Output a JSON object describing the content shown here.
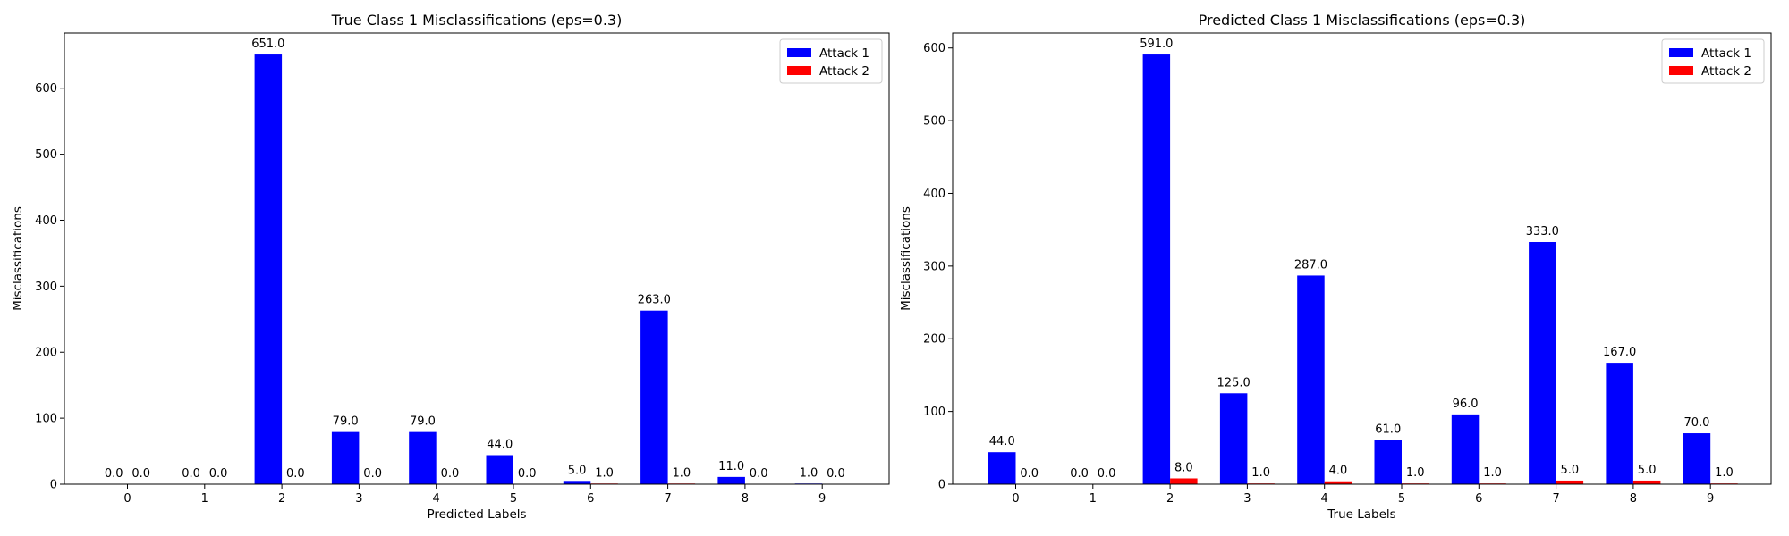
{
  "colors": {
    "attack1": "#0000ff",
    "attack2": "#ff0000"
  },
  "chart_data": [
    {
      "type": "bar",
      "title": "True Class 1 Misclassifications (eps=0.3)",
      "xlabel": "Predicted Labels",
      "ylabel": "Misclassifications",
      "categories": [
        "0",
        "1",
        "2",
        "3",
        "4",
        "5",
        "6",
        "7",
        "8",
        "9"
      ],
      "ylim": [
        0,
        683.55
      ],
      "yticks": [
        0,
        100,
        200,
        300,
        400,
        500,
        600
      ],
      "legend_position": "top-right",
      "series": [
        {
          "name": "Attack 1",
          "color": "#0000ff",
          "values": [
            0,
            0,
            651,
            79,
            79,
            44,
            5,
            263,
            11,
            1
          ],
          "labels": [
            "0.0",
            "0.0",
            "651.0",
            "79.0",
            "79.0",
            "44.0",
            "5.0",
            "263.0",
            "11.0",
            "1.0"
          ]
        },
        {
          "name": "Attack 2",
          "color": "#ff0000",
          "values": [
            0,
            0,
            0,
            0,
            0,
            0,
            1,
            1,
            0,
            0
          ],
          "labels": [
            "0.0",
            "0.0",
            "0.0",
            "0.0",
            "0.0",
            "0.0",
            "1.0",
            "1.0",
            "0.0",
            "0.0"
          ]
        }
      ]
    },
    {
      "type": "bar",
      "title": "Predicted Class 1 Misclassifications (eps=0.3)",
      "xlabel": "True Labels",
      "ylabel": "Misclassifications",
      "categories": [
        "0",
        "1",
        "2",
        "3",
        "4",
        "5",
        "6",
        "7",
        "8",
        "9"
      ],
      "ylim": [
        0,
        620.55
      ],
      "yticks": [
        0,
        100,
        200,
        300,
        400,
        500,
        600
      ],
      "legend_position": "top-right",
      "series": [
        {
          "name": "Attack 1",
          "color": "#0000ff",
          "values": [
            44,
            0,
            591,
            125,
            287,
            61,
            96,
            333,
            167,
            70
          ],
          "labels": [
            "44.0",
            "0.0",
            "591.0",
            "125.0",
            "287.0",
            "61.0",
            "96.0",
            "333.0",
            "167.0",
            "70.0"
          ]
        },
        {
          "name": "Attack 2",
          "color": "#ff0000",
          "values": [
            0,
            0,
            8,
            1,
            4,
            1,
            1,
            5,
            5,
            1
          ],
          "labels": [
            "0.0",
            "0.0",
            "8.0",
            "1.0",
            "4.0",
            "1.0",
            "1.0",
            "5.0",
            "5.0",
            "1.0"
          ]
        }
      ]
    }
  ]
}
